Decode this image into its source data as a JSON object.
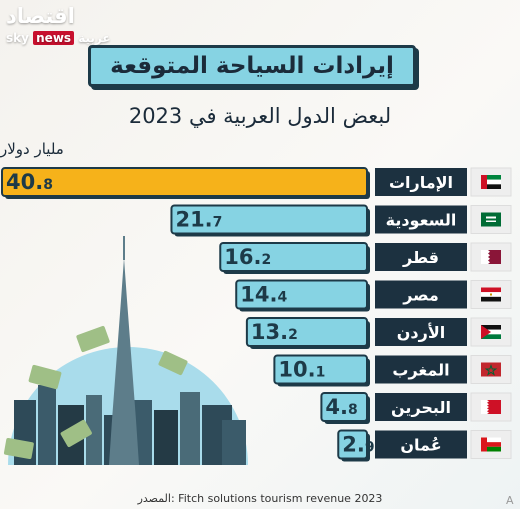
{
  "brand": {
    "arabic_name": "اقتصاد",
    "sky": "sky",
    "news": "news",
    "arabic_sub": "عربية"
  },
  "header": {
    "title": "إيرادات السياحة المتوقعة",
    "subtitle": "لبعض الدول العربية في 2023"
  },
  "unit": "مليار دولار",
  "source": "المصدر: Fitch solutions tourism revenue 2023",
  "corner_mark": "A",
  "colors": {
    "highlight": "#f6b21a",
    "bar": "#86d3e3",
    "outline": "#1d3a48",
    "label_bg": "#1c3140",
    "label_text": "#ffffff",
    "flag_box": "#eeeeee"
  },
  "chart_data": {
    "type": "bar",
    "orientation": "horizontal",
    "title": "إيرادات السياحة المتوقعة",
    "subtitle": "لبعض الدول العربية في 2023",
    "ylabel": "مليار دولار",
    "categories": [
      "الإمارات",
      "السعودية",
      "قطر",
      "مصر",
      "الأردن",
      "المغرب",
      "البحرين",
      "عُمان"
    ],
    "values": [
      40.8,
      21.7,
      16.2,
      14.4,
      13.2,
      10.1,
      4.8,
      2.9
    ],
    "value_labels": [
      {
        "int": "40.",
        "dec": "8"
      },
      {
        "int": "21.",
        "dec": "7"
      },
      {
        "int": "16.",
        "dec": "2"
      },
      {
        "int": "14.",
        "dec": "4"
      },
      {
        "int": "13.",
        "dec": "2"
      },
      {
        "int": "10.",
        "dec": "1"
      },
      {
        "int": "4.",
        "dec": "8"
      },
      {
        "int": "2.",
        "dec": "9"
      }
    ],
    "flags": [
      "uae-flag-icon",
      "saudi-flag-icon",
      "qatar-flag-icon",
      "egypt-flag-icon",
      "jordan-flag-icon",
      "morocco-flag-icon",
      "bahrain-flag-icon",
      "oman-flag-icon"
    ],
    "highlight_index": 0,
    "xlim": [
      0,
      40.8
    ],
    "grid": false,
    "legend": "none"
  }
}
